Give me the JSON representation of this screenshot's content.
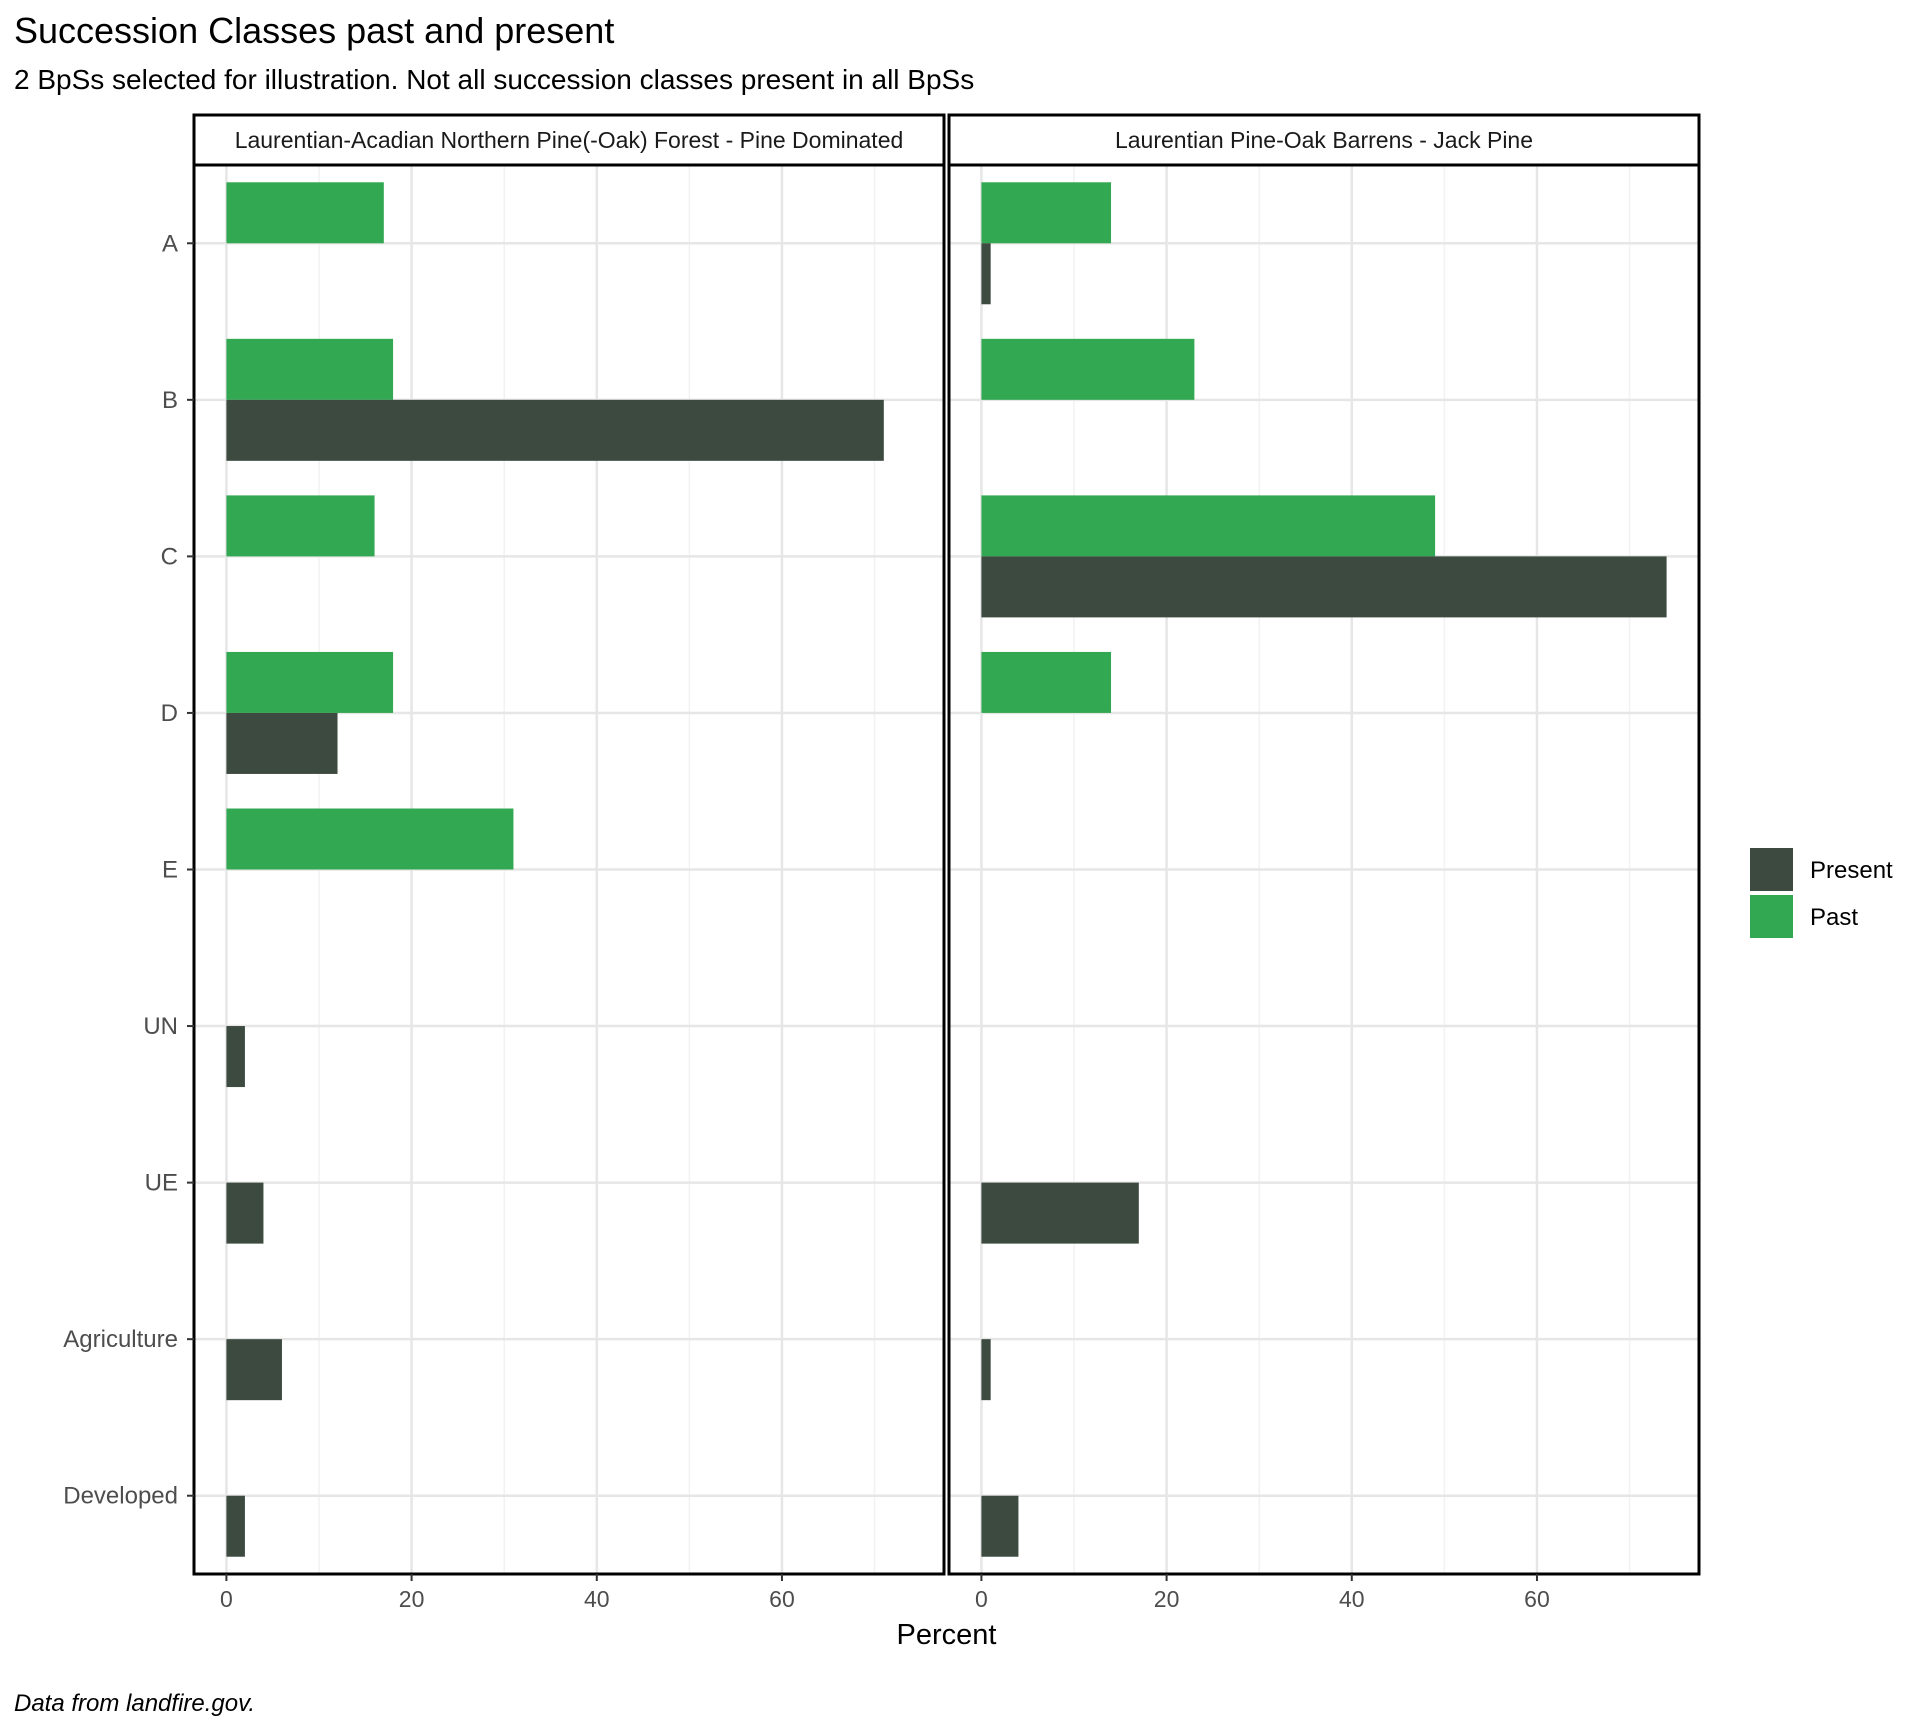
{
  "title": "Succession Classes past and present",
  "subtitle": "2 BpSs selected for illustration. Not all succession classes present in all BpSs",
  "caption": "Data from landfire.gov.",
  "chart_data": {
    "type": "bar",
    "orientation": "horizontal",
    "xlabel": "Percent",
    "categories": [
      "A",
      "B",
      "C",
      "D",
      "E",
      "UN",
      "UE",
      "Agriculture",
      "Developed"
    ],
    "xlim": [
      -3.5,
      77.5
    ],
    "xticks": [
      0,
      20,
      40,
      60
    ],
    "grid": true,
    "legend_position": "right",
    "legend": [
      {
        "name": "Present",
        "color": "#3d4a40"
      },
      {
        "name": "Past",
        "color": "#33a853"
      }
    ],
    "panels": [
      {
        "label": "Laurentian-Acadian Northern Pine(-Oak) Forest - Pine Dominated",
        "series": [
          {
            "name": "Past",
            "values": [
              17,
              18,
              16,
              18,
              31,
              null,
              null,
              null,
              null
            ]
          },
          {
            "name": "Present",
            "values": [
              null,
              71,
              null,
              12,
              null,
              2,
              4,
              6,
              2
            ]
          }
        ]
      },
      {
        "label": "Laurentian Pine-Oak Barrens - Jack Pine",
        "series": [
          {
            "name": "Past",
            "values": [
              14,
              23,
              49,
              14,
              null,
              null,
              null,
              null,
              null
            ]
          },
          {
            "name": "Present",
            "values": [
              1,
              null,
              74,
              null,
              null,
              null,
              17,
              1,
              4
            ]
          }
        ]
      }
    ]
  }
}
